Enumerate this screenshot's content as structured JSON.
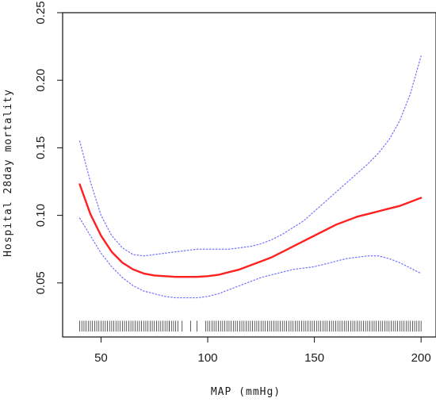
{
  "chart_data": {
    "type": "line",
    "xlabel": "MAP (mmHg)",
    "ylabel": "Hospital 28day mortality",
    "xlim": [
      32,
      207
    ],
    "ylim": [
      0.01,
      0.25
    ],
    "x_ticks": [
      50,
      100,
      150,
      200
    ],
    "y_ticks": [
      0.05,
      0.1,
      0.15,
      0.2,
      0.25
    ],
    "x_tick_labels": [
      "50",
      "100",
      "150",
      "200"
    ],
    "y_tick_labels": [
      "0.05",
      "0.10",
      "0.15",
      "0.20",
      "0.25"
    ],
    "grid": false,
    "legend": false,
    "series": [
      {
        "role": "estimate",
        "color": "#ff2020",
        "style": "solid",
        "x": [
          40,
          45,
          50,
          55,
          60,
          65,
          70,
          75,
          80,
          85,
          90,
          95,
          100,
          105,
          110,
          115,
          120,
          125,
          130,
          135,
          140,
          145,
          150,
          155,
          160,
          165,
          170,
          175,
          180,
          185,
          190,
          195,
          200
        ],
        "y": [
          0.123,
          0.101,
          0.085,
          0.073,
          0.065,
          0.06,
          0.057,
          0.0555,
          0.055,
          0.0545,
          0.0545,
          0.0545,
          0.055,
          0.056,
          0.058,
          0.06,
          0.063,
          0.066,
          0.069,
          0.073,
          0.077,
          0.081,
          0.085,
          0.089,
          0.093,
          0.096,
          0.099,
          0.101,
          0.103,
          0.105,
          0.107,
          0.11,
          0.113
        ]
      },
      {
        "role": "upper-ci",
        "color": "#7070ff",
        "style": "dotted",
        "x": [
          40,
          45,
          50,
          55,
          60,
          65,
          70,
          75,
          80,
          85,
          90,
          95,
          100,
          105,
          110,
          115,
          120,
          125,
          130,
          135,
          140,
          145,
          150,
          155,
          160,
          165,
          170,
          175,
          180,
          185,
          190,
          195,
          200
        ],
        "y": [
          0.155,
          0.125,
          0.1,
          0.085,
          0.076,
          0.071,
          0.07,
          0.071,
          0.072,
          0.073,
          0.074,
          0.075,
          0.075,
          0.075,
          0.075,
          0.076,
          0.077,
          0.079,
          0.082,
          0.086,
          0.091,
          0.096,
          0.103,
          0.11,
          0.117,
          0.124,
          0.131,
          0.138,
          0.146,
          0.156,
          0.17,
          0.19,
          0.218
        ]
      },
      {
        "role": "lower-ci",
        "color": "#7070ff",
        "style": "dotted",
        "x": [
          40,
          45,
          50,
          55,
          60,
          65,
          70,
          75,
          80,
          85,
          90,
          95,
          100,
          105,
          110,
          115,
          120,
          125,
          130,
          135,
          140,
          145,
          150,
          155,
          160,
          165,
          170,
          175,
          180,
          185,
          190,
          195,
          200
        ],
        "y": [
          0.098,
          0.085,
          0.072,
          0.062,
          0.054,
          0.048,
          0.044,
          0.042,
          0.04,
          0.039,
          0.039,
          0.039,
          0.04,
          0.042,
          0.045,
          0.048,
          0.051,
          0.054,
          0.056,
          0.058,
          0.06,
          0.061,
          0.062,
          0.064,
          0.066,
          0.068,
          0.069,
          0.07,
          0.07,
          0.068,
          0.065,
          0.061,
          0.057
        ]
      }
    ],
    "rug": {
      "color": "#333333",
      "ranges": [
        [
          40,
          86
        ],
        [
          95,
          95
        ],
        [
          99,
          200
        ]
      ],
      "extra": [
        82,
        88,
        92
      ]
    }
  }
}
